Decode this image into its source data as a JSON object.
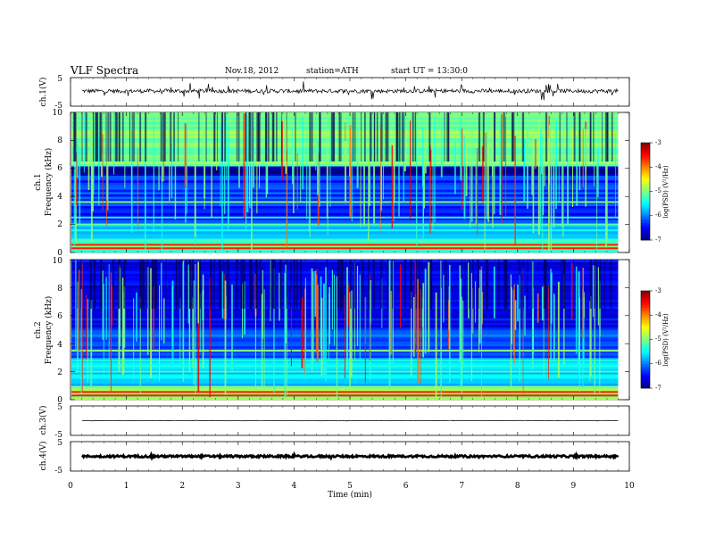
{
  "header": {
    "title": "VLF  Spectra",
    "date": "Nov.18, 2012",
    "station": "station=ATH",
    "start": "start  UT  =   13:30:0"
  },
  "chart_data": [
    {
      "type": "line",
      "id": "ch1",
      "ylabel": "ch.1(V)",
      "ylim": [
        -5,
        5
      ],
      "yticks": [
        "5",
        "-5"
      ],
      "signal": {
        "baseline": 0.3,
        "noise_amplitude": 0.7,
        "spike_amplitude": 3.0
      }
    },
    {
      "type": "heatmap",
      "id": "ch1-spectrogram",
      "title_left": "ch.1",
      "ylabel": "Frequency (kHz)",
      "ylim": [
        0,
        10
      ],
      "yticks": [
        "10",
        "8",
        "6",
        "4",
        "2",
        "0"
      ],
      "colorbar": {
        "label": "log(PSD) (V²/Hz)",
        "ticks": [
          "-3",
          "-4",
          "-5",
          "-6",
          "-7"
        ],
        "range": [
          -7,
          -3
        ]
      },
      "background_bands_kHz": [
        {
          "from": 0,
          "to": 1.0,
          "level": -5.2
        },
        {
          "from": 1.0,
          "to": 2.0,
          "level": -5.8
        },
        {
          "from": 2.0,
          "to": 5.5,
          "level": -6.3
        },
        {
          "from": 5.5,
          "to": 6.2,
          "level": -6.9
        },
        {
          "from": 6.2,
          "to": 10,
          "level": -5.0
        }
      ],
      "lines_kHz": [
        0.3,
        0.55,
        0.8,
        1.6,
        2.0,
        2.5,
        3.6
      ]
    },
    {
      "type": "heatmap",
      "id": "ch2-spectrogram",
      "title_left": "ch.2",
      "ylabel": "Frequency (kHz)",
      "ylim": [
        0,
        10
      ],
      "yticks": [
        "10",
        "8",
        "6",
        "4",
        "2",
        "0"
      ],
      "colorbar": {
        "label": "log(PSD) (V²/Hz)",
        "ticks": [
          "-3",
          "-4",
          "-5",
          "-6",
          "-7"
        ],
        "range": [
          -7,
          -3
        ]
      },
      "background_bands_kHz": [
        {
          "from": 0,
          "to": 1.0,
          "level": -5.0
        },
        {
          "from": 1.0,
          "to": 3.0,
          "level": -5.6
        },
        {
          "from": 3.0,
          "to": 5.0,
          "level": -6.1
        },
        {
          "from": 5.0,
          "to": 6.2,
          "level": -6.5
        },
        {
          "from": 6.2,
          "to": 10,
          "level": -6.6
        }
      ],
      "lines_kHz": [
        0.3,
        0.55,
        0.8,
        1.6,
        2.0,
        2.8,
        3.5
      ]
    },
    {
      "type": "line",
      "id": "ch3",
      "ylabel": "ch.3(V)",
      "ylim": [
        -5,
        5
      ],
      "yticks": [
        "5",
        "-5"
      ],
      "signal": {
        "baseline": 0.0,
        "noise_amplitude": 0.05,
        "spike_amplitude": 0.2
      }
    },
    {
      "type": "line",
      "id": "ch4",
      "ylabel": "ch.4(V)",
      "ylim": [
        -5,
        5
      ],
      "yticks": [
        "5",
        "-5"
      ],
      "signal": {
        "baseline": 0.0,
        "noise_amplitude": 0.35,
        "spike_amplitude": 0.35
      }
    }
  ],
  "x_axis": {
    "label": "Time  (min)",
    "xlim": [
      0,
      10
    ],
    "ticks": [
      "0",
      "1",
      "2",
      "3",
      "4",
      "5",
      "6",
      "7",
      "8",
      "9",
      "10"
    ],
    "data_end_min": 9.8
  }
}
